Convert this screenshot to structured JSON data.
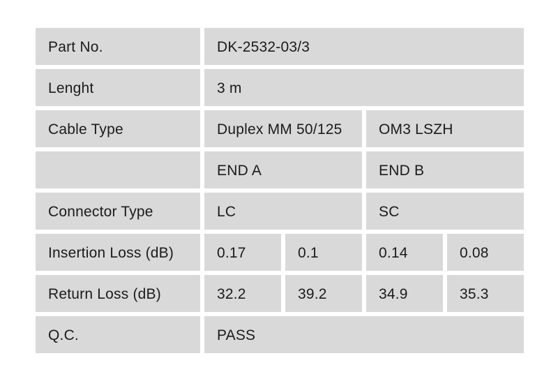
{
  "page": {
    "background_color": "#ffffff"
  },
  "table": {
    "name": "cable-qc-specification-table",
    "cell_background_color": "#d9d9d9",
    "text_color": "#1b1b1b",
    "column_count": 5,
    "rows": [
      {
        "label": "Part No.",
        "values": [
          {
            "text": "DK-2532-03/3",
            "span": 4
          }
        ]
      },
      {
        "label": "Lenght",
        "values": [
          {
            "text": "3 m",
            "span": 4
          }
        ]
      },
      {
        "label": "Cable Type",
        "values": [
          {
            "text": "Duplex MM 50/125",
            "span": 2
          },
          {
            "text": "OM3 LSZH",
            "span": 2
          }
        ]
      },
      {
        "label": "",
        "values": [
          {
            "text": "END A",
            "span": 2
          },
          {
            "text": "END B",
            "span": 2
          }
        ]
      },
      {
        "label": "Connector Type",
        "values": [
          {
            "text": "LC",
            "span": 2
          },
          {
            "text": "SC",
            "span": 2
          }
        ]
      },
      {
        "label": "Insertion Loss (dB)",
        "values": [
          {
            "text": "0.17",
            "span": 1
          },
          {
            "text": "0.1",
            "span": 1
          },
          {
            "text": "0.14",
            "span": 1
          },
          {
            "text": "0.08",
            "span": 1
          }
        ]
      },
      {
        "label": "Return Loss (dB)",
        "values": [
          {
            "text": "32.2",
            "span": 1
          },
          {
            "text": "39.2",
            "span": 1
          },
          {
            "text": "34.9",
            "span": 1
          },
          {
            "text": "35.3",
            "span": 1
          }
        ]
      },
      {
        "label": "Q.C.",
        "values": [
          {
            "text": "PASS",
            "span": 4
          }
        ]
      }
    ]
  }
}
